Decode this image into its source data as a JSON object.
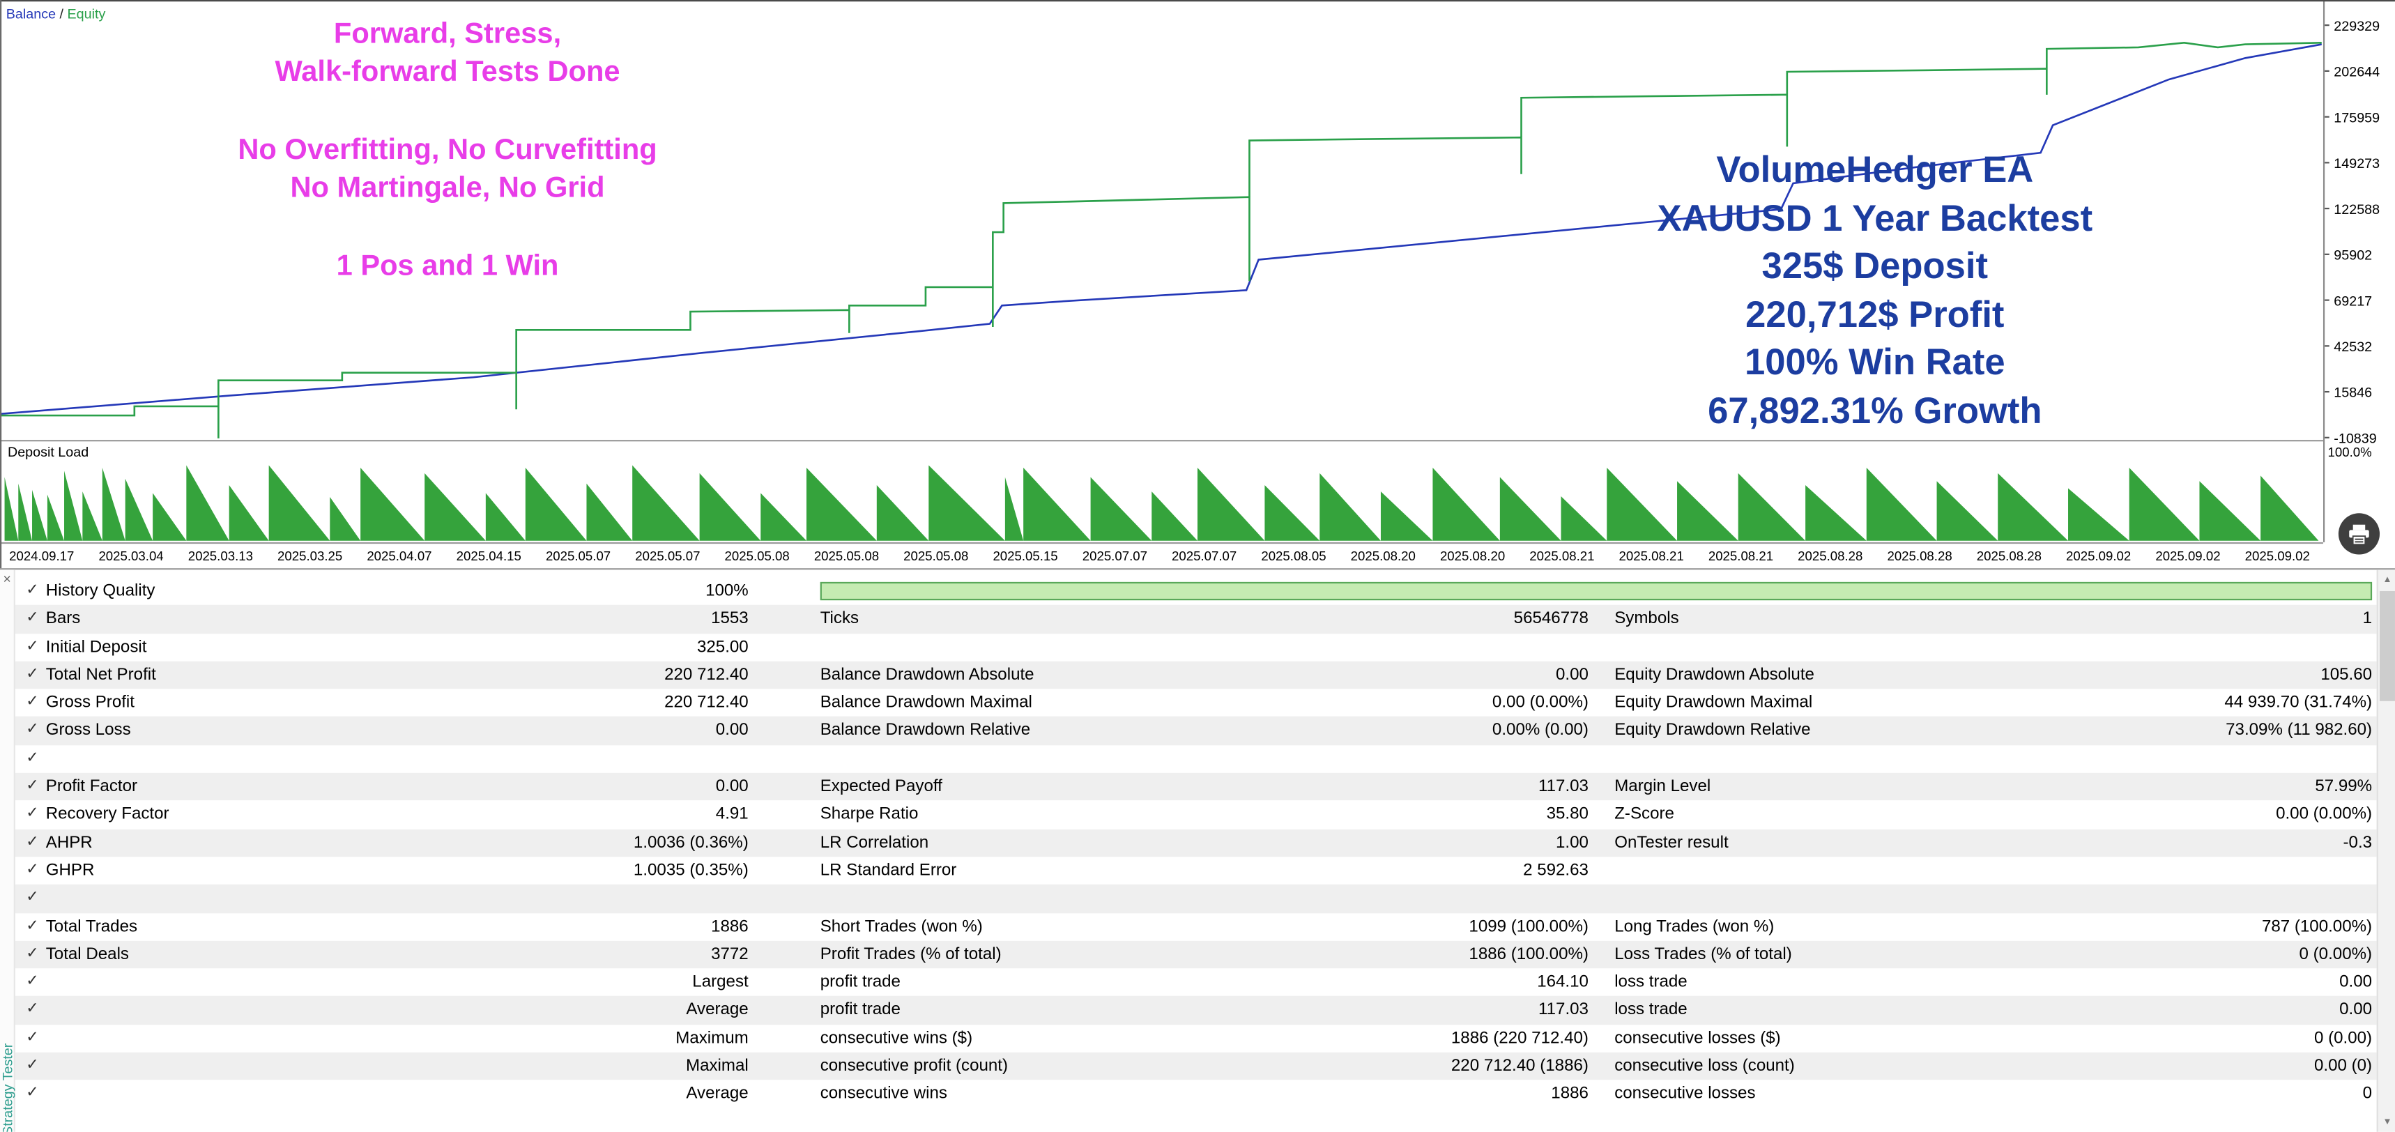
{
  "legend": {
    "balance": "Balance",
    "sep": " / ",
    "equity": "Equity"
  },
  "overlays": {
    "magenta": [
      [
        "Forward, Stress,",
        "Walk-forward Tests Done"
      ],
      [
        "No Overfitting, No Curvefitting",
        "No Martingale, No Grid"
      ],
      [
        "1 Pos and 1 Win"
      ]
    ],
    "blue": [
      "VolumeHedger EA",
      "XAUUSD 1 Year Backtest",
      "325$ Deposit",
      "220,712$ Profit",
      "100% Win Rate",
      "67,892.31% Growth"
    ]
  },
  "axes": {
    "y": [
      "229329",
      "202644",
      "175959",
      "149273",
      "122588",
      "95902",
      "69217",
      "42532",
      "15846",
      "-10839"
    ],
    "x": [
      "2024.09.17",
      "2025.03.04",
      "2025.03.13",
      "2025.03.25",
      "2025.04.07",
      "2025.04.15",
      "2025.05.07",
      "2025.05.07",
      "2025.05.08",
      "2025.05.08",
      "2025.05.08",
      "2025.05.15",
      "2025.07.07",
      "2025.07.07",
      "2025.08.05",
      "2025.08.20",
      "2025.08.20",
      "2025.08.21",
      "2025.08.21",
      "2025.08.21",
      "2025.08.28",
      "2025.08.28",
      "2025.08.28",
      "2025.09.02",
      "2025.09.02",
      "2025.09.02"
    ]
  },
  "deposit_load": {
    "label": "Deposit Load",
    "max_label": "100.0%"
  },
  "chart_data": {
    "type": "line",
    "title": "Balance / Equity backtest curve",
    "x_range": [
      "2024.09.17",
      "2025.09.02"
    ],
    "y_range": [
      -10839,
      229329
    ],
    "legend_position": "top-left",
    "series": [
      {
        "name": "Balance",
        "color": "#2438b8",
        "points": [
          [
            0,
            271
          ],
          [
            150,
            259
          ],
          [
            310,
            247
          ],
          [
            460,
            231
          ],
          [
            600,
            217
          ],
          [
            648,
            212
          ],
          [
            656,
            200
          ],
          [
            700,
            197
          ],
          [
            816,
            190
          ],
          [
            824,
            170
          ],
          [
            1000,
            153
          ],
          [
            1166,
            137
          ],
          [
            1174,
            120
          ],
          [
            1258,
            109
          ],
          [
            1336,
            100
          ],
          [
            1344,
            82
          ],
          [
            1420,
            52
          ],
          [
            1470,
            38
          ],
          [
            1520,
            29
          ]
        ]
      },
      {
        "name": "Equity",
        "color": "#2aa04a",
        "points": [
          [
            0,
            272
          ],
          [
            88,
            272
          ],
          [
            88,
            266
          ],
          [
            143,
            266
          ],
          [
            143,
            292
          ],
          [
            143,
            249
          ],
          [
            224,
            249
          ],
          [
            224,
            244
          ],
          [
            338,
            244
          ],
          [
            338,
            268
          ],
          [
            338,
            216
          ],
          [
            452,
            216
          ],
          [
            452,
            204
          ],
          [
            556,
            203
          ],
          [
            556,
            218
          ],
          [
            556,
            200
          ],
          [
            606,
            200
          ],
          [
            606,
            188
          ],
          [
            650,
            188
          ],
          [
            650,
            214
          ],
          [
            650,
            152
          ],
          [
            657,
            152
          ],
          [
            657,
            133
          ],
          [
            700,
            132
          ],
          [
            818,
            129
          ],
          [
            818,
            184
          ],
          [
            818,
            92
          ],
          [
            900,
            91
          ],
          [
            996,
            90
          ],
          [
            996,
            114
          ],
          [
            996,
            64
          ],
          [
            1080,
            63
          ],
          [
            1170,
            62
          ],
          [
            1170,
            96
          ],
          [
            1170,
            47
          ],
          [
            1262,
            46
          ],
          [
            1340,
            45
          ],
          [
            1340,
            62
          ],
          [
            1340,
            32
          ],
          [
            1400,
            31
          ],
          [
            1430,
            28
          ],
          [
            1452,
            31
          ],
          [
            1470,
            29
          ],
          [
            1520,
            28
          ]
        ]
      }
    ],
    "deposit_load_pct_max": 100.0,
    "deposit_bars": [
      [
        3,
        9,
        0.8
      ],
      [
        12,
        9,
        0.72
      ],
      [
        21,
        10,
        0.64
      ],
      [
        31,
        11,
        0.58
      ],
      [
        42,
        12,
        0.88
      ],
      [
        54,
        13,
        0.62
      ],
      [
        67,
        15,
        0.92
      ],
      [
        82,
        18,
        0.78
      ],
      [
        100,
        22,
        0.6
      ],
      [
        122,
        28,
        0.95
      ],
      [
        150,
        26,
        0.7
      ],
      [
        176,
        40,
        0.95
      ],
      [
        216,
        20,
        0.55
      ],
      [
        236,
        42,
        0.92
      ],
      [
        278,
        40,
        0.85
      ],
      [
        318,
        26,
        0.6
      ],
      [
        344,
        40,
        0.92
      ],
      [
        384,
        30,
        0.72
      ],
      [
        414,
        44,
        0.95
      ],
      [
        458,
        40,
        0.85
      ],
      [
        498,
        30,
        0.6
      ],
      [
        528,
        46,
        0.92
      ],
      [
        574,
        34,
        0.7
      ],
      [
        608,
        50,
        0.95
      ],
      [
        658,
        12,
        0.8
      ],
      [
        670,
        44,
        0.92
      ],
      [
        714,
        40,
        0.8
      ],
      [
        754,
        30,
        0.62
      ],
      [
        784,
        44,
        0.92
      ],
      [
        828,
        36,
        0.7
      ],
      [
        864,
        40,
        0.85
      ],
      [
        904,
        34,
        0.62
      ],
      [
        938,
        44,
        0.92
      ],
      [
        982,
        40,
        0.8
      ],
      [
        1022,
        30,
        0.56
      ],
      [
        1052,
        46,
        0.92
      ],
      [
        1098,
        40,
        0.75
      ],
      [
        1138,
        44,
        0.85
      ],
      [
        1182,
        40,
        0.7
      ],
      [
        1222,
        46,
        0.92
      ],
      [
        1268,
        40,
        0.75
      ],
      [
        1308,
        46,
        0.85
      ],
      [
        1354,
        40,
        0.66
      ],
      [
        1394,
        46,
        0.92
      ],
      [
        1440,
        40,
        0.75
      ],
      [
        1480,
        38,
        0.82
      ]
    ]
  },
  "stats_rows": [
    {
      "check": true,
      "l1": "History Quality",
      "v1": "100%",
      "progress": true
    },
    {
      "check": true,
      "l1": "Bars",
      "v1": "1553",
      "l2": "Ticks",
      "v2": "56546778",
      "l3": "Symbols",
      "v3": "1"
    },
    {
      "check": true,
      "l1": "Initial Deposit",
      "v1": "325.00"
    },
    {
      "check": true,
      "l1": "Total Net Profit",
      "v1": "220 712.40",
      "l2": "Balance Drawdown Absolute",
      "v2": "0.00",
      "l3": "Equity Drawdown Absolute",
      "v3": "105.60"
    },
    {
      "check": true,
      "l1": "Gross Profit",
      "v1": "220 712.40",
      "l2": "Balance Drawdown Maximal",
      "v2": "0.00 (0.00%)",
      "l3": "Equity Drawdown Maximal",
      "v3": "44 939.70 (31.74%)"
    },
    {
      "check": true,
      "l1": "Gross Loss",
      "v1": "0.00",
      "l2": "Balance Drawdown Relative",
      "v2": "0.00% (0.00)",
      "l3": "Equity Drawdown Relative",
      "v3": "73.09% (11 982.60)"
    },
    {
      "check": true
    },
    {
      "check": true,
      "l1": "Profit Factor",
      "v1": "0.00",
      "l2": "Expected Payoff",
      "v2": "117.03",
      "l3": "Margin Level",
      "v3": "57.99%"
    },
    {
      "check": true,
      "l1": "Recovery Factor",
      "v1": "4.91",
      "l2": "Sharpe Ratio",
      "v2": "35.80",
      "l3": "Z-Score",
      "v3": "0.00 (0.00%)"
    },
    {
      "check": true,
      "l1": "AHPR",
      "v1": "1.0036 (0.36%)",
      "l2": "LR Correlation",
      "v2": "1.00",
      "l3": "OnTester result",
      "v3": "-0.3"
    },
    {
      "check": true,
      "l1": "GHPR",
      "v1": "1.0035 (0.35%)",
      "l2": "LR Standard Error",
      "v2": "2 592.63"
    },
    {
      "check": true
    },
    {
      "check": true,
      "l1": "Total Trades",
      "v1": "1886",
      "l2": "Short Trades (won %)",
      "v2": "1099 (100.00%)",
      "l3": "Long Trades (won %)",
      "v3": "787 (100.00%)"
    },
    {
      "check": true,
      "l1": "Total Deals",
      "v1": "3772",
      "l2": "Profit Trades (% of total)",
      "v2": "1886 (100.00%)",
      "l3": "Loss Trades (% of total)",
      "v3": "0 (0.00%)"
    },
    {
      "check": true,
      "v1": "Largest",
      "l2": "profit trade",
      "v2": "164.10",
      "l3": "loss trade",
      "v3": "0.00"
    },
    {
      "check": true,
      "v1": "Average",
      "l2": "profit trade",
      "v2": "117.03",
      "l3": "loss trade",
      "v3": "0.00"
    },
    {
      "check": true,
      "v1": "Maximum",
      "l2": "consecutive wins ($)",
      "v2": "1886 (220 712.40)",
      "l3": "consecutive losses ($)",
      "v3": "0 (0.00)"
    },
    {
      "check": true,
      "v1": "Maximal",
      "l2": "consecutive profit (count)",
      "v2": "220 712.40 (1886)",
      "l3": "consecutive loss (count)",
      "v3": "0.00 (0)"
    },
    {
      "check": true,
      "v1": "Average",
      "l2": "consecutive wins",
      "v2": "1886",
      "l3": "consecutive losses",
      "v3": "0"
    }
  ],
  "side_panel": {
    "close": "×",
    "tab": "Strategy Tester"
  },
  "scrollbar": {
    "up": "▲",
    "down": "▼"
  },
  "icons": {
    "check": "✓"
  },
  "colors": {
    "balance_line": "#2438b8",
    "equity_line": "#2aa04a",
    "deposit_fill": "#35a33c",
    "magenta_text": "#e83de8",
    "headline_blue": "#1c3da0",
    "progress_fill": "#c5ebb2",
    "progress_border": "#5aa85a",
    "row_alt": "#efefef"
  }
}
